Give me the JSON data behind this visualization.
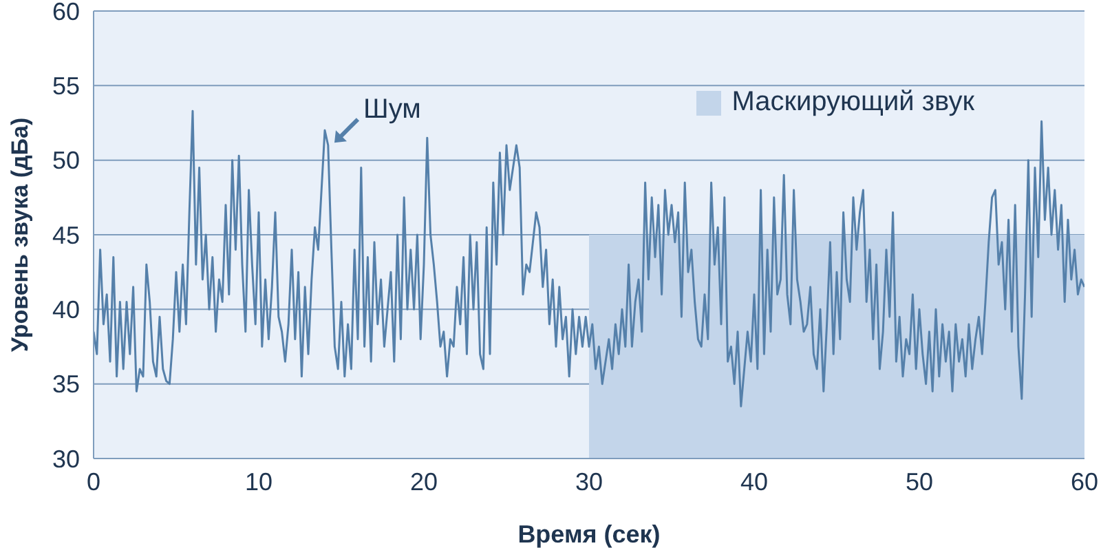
{
  "chart_data": {
    "type": "line",
    "xlabel": "Время (сек)",
    "ylabel": "Уровень звука (дБа)",
    "xlim": [
      0,
      60
    ],
    "ylim": [
      30,
      60
    ],
    "xticks": [
      0,
      10,
      20,
      30,
      40,
      50,
      60
    ],
    "yticks": [
      30,
      35,
      40,
      45,
      50,
      55,
      60
    ],
    "grid": "y",
    "legend": "top right",
    "marker": "none",
    "line_style": "solid",
    "x": [
      0,
      0.2,
      0.4,
      0.6,
      0.8,
      1,
      1.2,
      1.4,
      1.6,
      1.8,
      2,
      2.2,
      2.4,
      2.6,
      2.8,
      3,
      3.2,
      3.4,
      3.6,
      3.8,
      4,
      4.2,
      4.4,
      4.6,
      4.8,
      5,
      5.2,
      5.4,
      5.6,
      5.8,
      6,
      6.2,
      6.4,
      6.6,
      6.8,
      7,
      7.2,
      7.4,
      7.6,
      7.8,
      8,
      8.2,
      8.4,
      8.6,
      8.8,
      9,
      9.2,
      9.4,
      9.6,
      9.8,
      10,
      10.2,
      10.4,
      10.6,
      10.8,
      11,
      11.2,
      11.4,
      11.6,
      11.8,
      12,
      12.2,
      12.4,
      12.6,
      12.8,
      13,
      13.2,
      13.4,
      13.6,
      13.8,
      14,
      14.2,
      14.4,
      14.6,
      14.8,
      15,
      15.2,
      15.4,
      15.6,
      15.8,
      16,
      16.2,
      16.4,
      16.6,
      16.8,
      17,
      17.2,
      17.4,
      17.6,
      17.8,
      18,
      18.2,
      18.4,
      18.6,
      18.8,
      19,
      19.2,
      19.4,
      19.6,
      19.8,
      20,
      20.2,
      20.4,
      20.6,
      20.8,
      21,
      21.2,
      21.4,
      21.6,
      21.8,
      22,
      22.2,
      22.4,
      22.6,
      22.8,
      23,
      23.2,
      23.4,
      23.6,
      23.8,
      24,
      24.2,
      24.4,
      24.6,
      24.8,
      25,
      25.2,
      25.4,
      25.6,
      25.8,
      26,
      26.2,
      26.4,
      26.6,
      26.8,
      27,
      27.2,
      27.4,
      27.6,
      27.8,
      28,
      28.2,
      28.4,
      28.6,
      28.8,
      29,
      29.2,
      29.4,
      29.6,
      29.8,
      30,
      30.2,
      30.4,
      30.6,
      30.8,
      31,
      31.2,
      31.4,
      31.6,
      31.8,
      32,
      32.2,
      32.4,
      32.6,
      32.8,
      33,
      33.2,
      33.4,
      33.6,
      33.8,
      34,
      34.2,
      34.4,
      34.6,
      34.8,
      35,
      35.2,
      35.4,
      35.6,
      35.8,
      36,
      36.2,
      36.4,
      36.6,
      36.8,
      37,
      37.2,
      37.4,
      37.6,
      37.8,
      38,
      38.2,
      38.4,
      38.6,
      38.8,
      39,
      39.2,
      39.4,
      39.6,
      39.8,
      40,
      40.2,
      40.4,
      40.6,
      40.8,
      41,
      41.2,
      41.4,
      41.6,
      41.8,
      42,
      42.2,
      42.4,
      42.6,
      42.8,
      43,
      43.2,
      43.4,
      43.6,
      43.8,
      44,
      44.2,
      44.4,
      44.6,
      44.8,
      45,
      45.2,
      45.4,
      45.6,
      45.8,
      46,
      46.2,
      46.4,
      46.6,
      46.8,
      47,
      47.2,
      47.4,
      47.6,
      47.8,
      48,
      48.2,
      48.4,
      48.6,
      48.8,
      49,
      49.2,
      49.4,
      49.6,
      49.8,
      50,
      50.2,
      50.4,
      50.6,
      50.8,
      51,
      51.2,
      51.4,
      51.6,
      51.8,
      52,
      52.2,
      52.4,
      52.6,
      52.8,
      53,
      53.2,
      53.4,
      53.6,
      53.8,
      54,
      54.2,
      54.4,
      54.6,
      54.8,
      55,
      55.2,
      55.4,
      55.6,
      55.8,
      56,
      56.2,
      56.4,
      56.6,
      56.8,
      57,
      57.2,
      57.4,
      57.6,
      57.8,
      58,
      58.2,
      58.4,
      58.6,
      58.8,
      59,
      59.2,
      59.4,
      59.6,
      59.8,
      60
    ],
    "series": [
      {
        "name": "Шум",
        "color": "#5580aa",
        "values": [
          38.5,
          37,
          44,
          39,
          41,
          36.5,
          43.5,
          35.5,
          40.5,
          36,
          40.5,
          37,
          41.5,
          34.5,
          36,
          35.5,
          43,
          40.5,
          36.5,
          35.5,
          39.5,
          36,
          35.2,
          35,
          38,
          42.5,
          38.5,
          43,
          39,
          46.5,
          53.3,
          43,
          49.5,
          42,
          45,
          40,
          43.5,
          38.5,
          42,
          40.5,
          47,
          41,
          50,
          44,
          50.3,
          43,
          38.5,
          48,
          43,
          39,
          46.5,
          37.5,
          42,
          38,
          41.5,
          46.5,
          39.5,
          38.5,
          36.5,
          39,
          44,
          38,
          42.5,
          35.5,
          41.5,
          37,
          42,
          45.5,
          44,
          48,
          52,
          51,
          44,
          37.5,
          36,
          40.5,
          35.5,
          39,
          36,
          44,
          38,
          49.5,
          37.5,
          43.5,
          36.5,
          44.5,
          39,
          42,
          37.5,
          40,
          42.5,
          36.5,
          45,
          38,
          47.5,
          40,
          44,
          40,
          45,
          38,
          43,
          51.5,
          45,
          43,
          40.5,
          37.5,
          38.5,
          35.5,
          38,
          37.5,
          41.5,
          39,
          43.5,
          37,
          45,
          40,
          44.5,
          37,
          36,
          45.5,
          37,
          48.5,
          43,
          50.5,
          45,
          51,
          48,
          49.5,
          51,
          49.5,
          41,
          43,
          42.5,
          44.5,
          46.5,
          45.5,
          41.5,
          44,
          39,
          42,
          37.5,
          41.5,
          38,
          39.5,
          35.5,
          40,
          37,
          39.5,
          37.5,
          39.5,
          37.5,
          39,
          36,
          37.5,
          35,
          36.5,
          38,
          36,
          39,
          37,
          40,
          37.5,
          43,
          37.5,
          40.5,
          42,
          38.5,
          48.5,
          42,
          47.5,
          43.5,
          47,
          41,
          48,
          45,
          47,
          44.5,
          46.5,
          39.5,
          48.5,
          42.5,
          44,
          40.5,
          38,
          37.5,
          41,
          38,
          48.5,
          43,
          45.5,
          39,
          47.5,
          36.5,
          37.5,
          35,
          38.5,
          33.5,
          36,
          38.5,
          36.5,
          41,
          36,
          48,
          37,
          44,
          38.5,
          47.5,
          41,
          42,
          49,
          41,
          39,
          48,
          42,
          40.5,
          38.5,
          39,
          41.5,
          37,
          36,
          40,
          34.5,
          39,
          44.5,
          37,
          42.5,
          38,
          46.5,
          42,
          40.5,
          47.5,
          44,
          46.5,
          48,
          40.5,
          44,
          38,
          43,
          36,
          38.5,
          44,
          39.5,
          46.5,
          36.5,
          39.5,
          35.5,
          38,
          37,
          41,
          36,
          40,
          37,
          35,
          38.5,
          34.5,
          40,
          35.5,
          39,
          36.5,
          38.5,
          34.5,
          39,
          36.5,
          38,
          35.5,
          39,
          36,
          38,
          39.5,
          37,
          40.5,
          44.5,
          47.5,
          48,
          43,
          44.5,
          40,
          46,
          38.5,
          47,
          37.5,
          34,
          41,
          50,
          39.5,
          49.5,
          43.5,
          52.6,
          46,
          49.5,
          45,
          48,
          44,
          47,
          40.5,
          46,
          42,
          44,
          41,
          42,
          41.5
        ]
      },
      {
        "name": "Маскирующий звук",
        "type": "area",
        "color": "#c3d5ea",
        "x": [
          30,
          60
        ],
        "values": [
          45,
          45
        ]
      }
    ]
  }
}
